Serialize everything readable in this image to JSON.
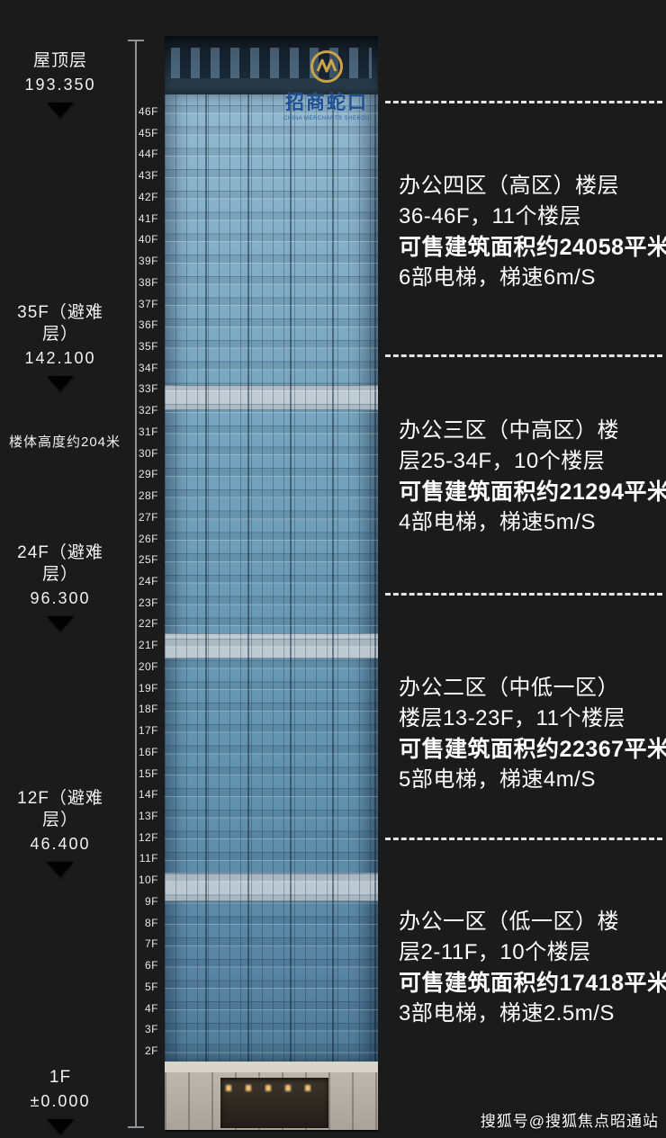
{
  "left_markers": [
    {
      "label": "屋顶层",
      "value": "193.350"
    },
    {
      "label": "35F（避难层）",
      "value": "142.100"
    },
    {
      "label": "24F（避难层）",
      "value": "96.300"
    },
    {
      "label": "12F（避难层）",
      "value": "46.400"
    },
    {
      "label": "1F",
      "value": "±0.000"
    }
  ],
  "height_note": "楼体高度约204米",
  "floors": [
    "46F",
    "45F",
    "44F",
    "43F",
    "42F",
    "41F",
    "40F",
    "39F",
    "38F",
    "37F",
    "36F",
    "35F",
    "34F",
    "33F",
    "32F",
    "31F",
    "30F",
    "29F",
    "28F",
    "27F",
    "26F",
    "25F",
    "24F",
    "23F",
    "22F",
    "21F",
    "20F",
    "19F",
    "18F",
    "17F",
    "16F",
    "15F",
    "14F",
    "13F",
    "12F",
    "11F",
    "10F",
    "9F",
    "8F",
    "7F",
    "6F",
    "5F",
    "4F",
    "3F",
    "2F"
  ],
  "building": {
    "logo_name": "招商蛇口",
    "logo_sub": "CHINA MERCHANTS SHEKOU",
    "colors": {
      "glass": "#6e9db8",
      "crown": "#1d2b38",
      "podium": "#bcb8ad",
      "logo_blue": "#1d4f94",
      "logo_gold": "#c9a24a"
    }
  },
  "zones": [
    {
      "line1": "办公四区（高区）楼层",
      "line2": "36-46F，11个楼层",
      "line3": "可售建筑面积约24058平米",
      "line4": "6部电梯，梯速6m/S"
    },
    {
      "line1": "办公三区（中高区）楼",
      "line2": "层25-34F，10个楼层",
      "line3": "可售建筑面积约21294平米",
      "line4": "4部电梯，梯速5m/S"
    },
    {
      "line1": "办公二区（中低一区）",
      "line2": "楼层13-23F，11个楼层",
      "line3": "可售建筑面积约22367平米",
      "line4": "5部电梯，梯速4m/S"
    },
    {
      "line1": "办公一区（低一区）楼",
      "line2": "层2-11F，10个楼层",
      "line3": "可售建筑面积约17418平米",
      "line4": "3部电梯，梯速2.5m/S"
    }
  ],
  "watermark": "搜狐号@搜狐焦点昭通站"
}
